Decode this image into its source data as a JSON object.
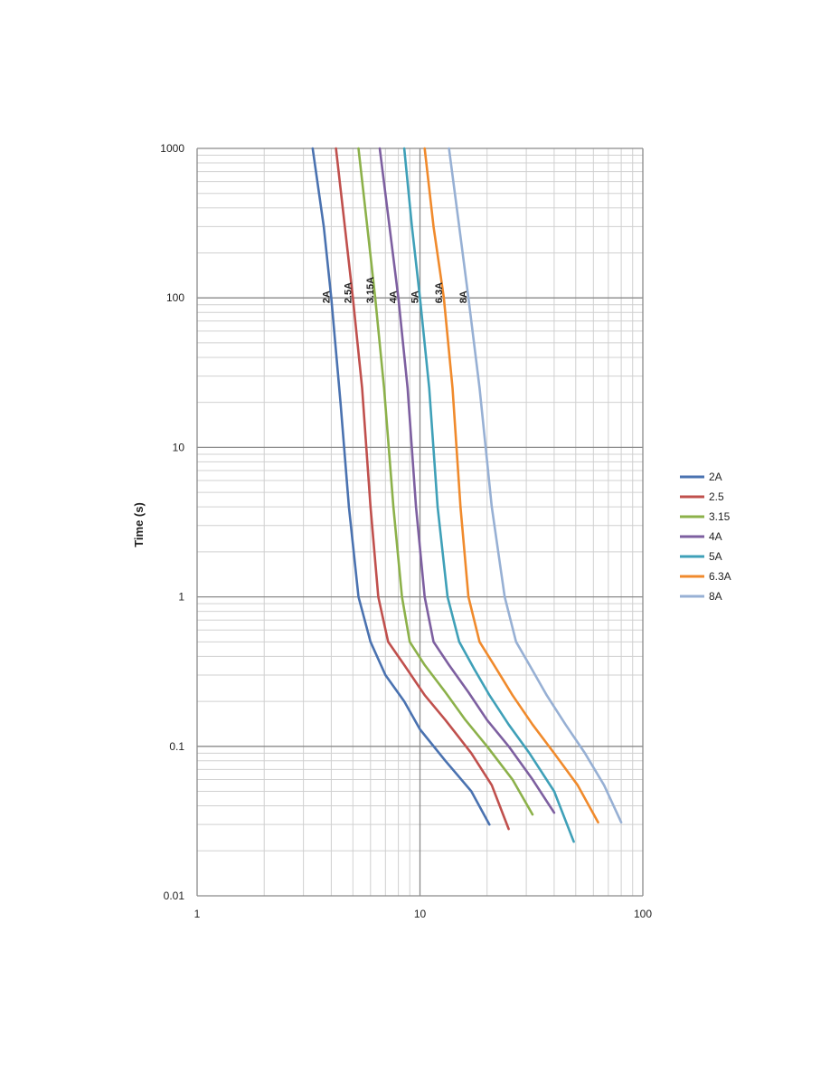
{
  "chart_data": {
    "type": "line",
    "title": "",
    "xlabel": "",
    "ylabel": "Time (s)",
    "x_scale": "log",
    "y_scale": "log",
    "xlim": [
      1,
      100
    ],
    "ylim": [
      0.01,
      1000
    ],
    "grid": true,
    "legend_position": "right",
    "x_ticks": [
      "1",
      "10",
      "100"
    ],
    "y_ticks": [
      "0.01",
      "0.1",
      "1",
      "10",
      "100",
      "1000"
    ],
    "series": [
      {
        "name": "2A",
        "curve_label": "2A",
        "color": "#4a72b0",
        "x": [
          3.3,
          3.7,
          4.0,
          4.4,
          4.8,
          5.3,
          6.0,
          7.0,
          8.5,
          10.0,
          13.0,
          17.0,
          20.5
        ],
        "y": [
          1000,
          300,
          100,
          20,
          4,
          1,
          0.5,
          0.3,
          0.2,
          0.13,
          0.08,
          0.05,
          0.03
        ]
      },
      {
        "name": "2.5",
        "curve_label": "2.5A",
        "color": "#c0504d",
        "x": [
          4.2,
          4.6,
          5.0,
          5.5,
          6.0,
          6.5,
          7.2,
          8.5,
          10.5,
          13.0,
          17.0,
          21.0,
          25.0
        ],
        "y": [
          1000,
          300,
          100,
          25,
          4,
          1,
          0.5,
          0.35,
          0.22,
          0.15,
          0.09,
          0.055,
          0.028
        ]
      },
      {
        "name": "3.15",
        "curve_label": "3.15A",
        "color": "#8cb14a",
        "x": [
          5.3,
          5.8,
          6.3,
          6.9,
          7.6,
          8.3,
          9.0,
          10.5,
          13.0,
          16.0,
          20.0,
          26.0,
          32.0
        ],
        "y": [
          1000,
          300,
          100,
          25,
          4,
          1,
          0.5,
          0.35,
          0.23,
          0.15,
          0.1,
          0.06,
          0.035
        ]
      },
      {
        "name": "4A",
        "curve_label": "4A",
        "color": "#7d5fa0",
        "x": [
          6.6,
          7.3,
          8.0,
          8.8,
          9.6,
          10.5,
          11.5,
          13.5,
          16.5,
          20.0,
          25.0,
          32.0,
          40.0
        ],
        "y": [
          1000,
          300,
          100,
          25,
          4,
          1,
          0.5,
          0.35,
          0.23,
          0.15,
          0.1,
          0.06,
          0.036
        ]
      },
      {
        "name": "5A",
        "curve_label": "5A",
        "color": "#3fa0b8",
        "x": [
          8.5,
          9.2,
          10.0,
          11.0,
          12.0,
          13.3,
          15.0,
          17.5,
          20.5,
          25.0,
          31.0,
          40.0,
          49.0
        ],
        "y": [
          1000,
          300,
          100,
          25,
          4,
          1,
          0.5,
          0.33,
          0.22,
          0.14,
          0.09,
          0.05,
          0.023
        ]
      },
      {
        "name": "6.3A",
        "curve_label": "6.3A",
        "color": "#f08a2c",
        "x": [
          10.5,
          11.5,
          12.8,
          14.0,
          15.2,
          16.5,
          18.5,
          21.5,
          26.0,
          32.0,
          40.0,
          51.0,
          63.0
        ],
        "y": [
          1000,
          300,
          100,
          25,
          4,
          1,
          0.5,
          0.35,
          0.22,
          0.14,
          0.09,
          0.055,
          0.031
        ]
      },
      {
        "name": "8A",
        "curve_label": "8A",
        "color": "#97b0d4",
        "x": [
          13.5,
          15.0,
          16.5,
          18.5,
          21.0,
          24.0,
          27.0,
          31.0,
          37.0,
          45.0,
          55.0,
          67.0,
          80.0
        ],
        "y": [
          1000,
          300,
          100,
          25,
          4,
          1,
          0.5,
          0.35,
          0.22,
          0.14,
          0.09,
          0.055,
          0.031
        ]
      }
    ]
  }
}
